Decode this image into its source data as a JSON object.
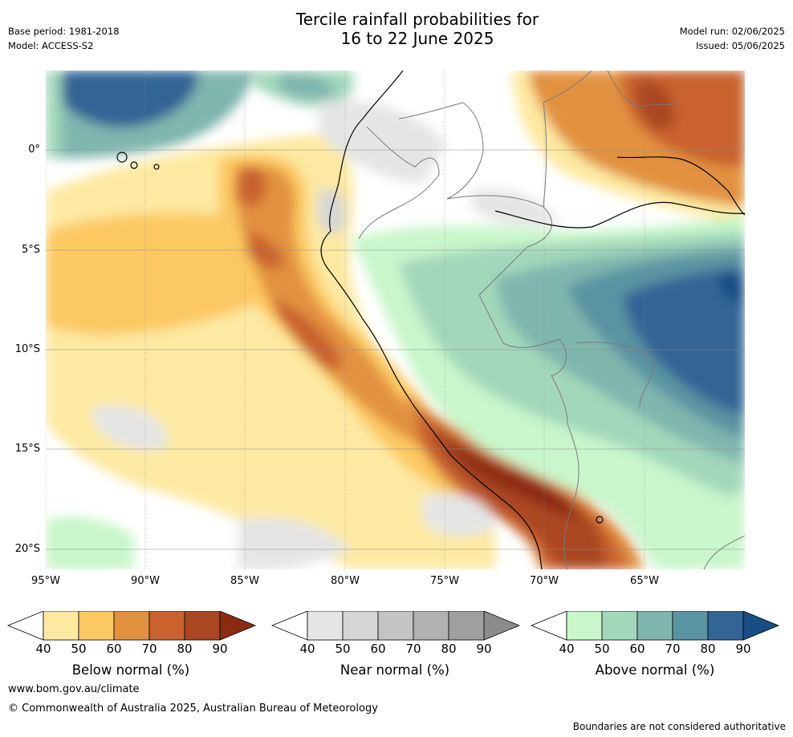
{
  "header": {
    "title_line1": "Tercile rainfall probabilities for",
    "title_line2": "16 to 22 June 2025",
    "base_period": "Base period: 1981-2018",
    "model": "Model: ACCESS-S2",
    "model_run": "Model run: 02/06/2025",
    "issued": "Issued: 05/06/2025"
  },
  "map": {
    "lat_labels": [
      "0°",
      "5°S",
      "10°S",
      "15°S",
      "20°S"
    ],
    "lon_labels": [
      "95°W",
      "90°W",
      "85°W",
      "80°W",
      "75°W",
      "70°W",
      "65°W"
    ]
  },
  "colorbars": [
    {
      "title": "Below normal (%)",
      "ticks": [
        "40",
        "50",
        "60",
        "70",
        "80",
        "90"
      ],
      "colors": [
        "#fde9a2",
        "#fcc862",
        "#e2913f",
        "#c9622e",
        "#aa4622",
        "#8c2b14"
      ]
    },
    {
      "title": "Near normal (%)",
      "ticks": [
        "40",
        "50",
        "60",
        "70",
        "80",
        "90"
      ],
      "colors": [
        "#e5e5e5",
        "#d5d5d5",
        "#c4c4c4",
        "#b2b2b2",
        "#9f9f9f",
        "#8b8b8b"
      ]
    },
    {
      "title": "Above normal (%)",
      "ticks": [
        "40",
        "50",
        "60",
        "70",
        "80",
        "90"
      ],
      "colors": [
        "#c9f6cb",
        "#a3d7bb",
        "#7fb6ae",
        "#5a93a2",
        "#336596",
        "#194d84"
      ]
    }
  ],
  "footer": {
    "url": "www.bom.gov.au/climate",
    "copyright": "© Commonwealth of Australia 2025, Australian Bureau of Meteorology",
    "disclaimer": "Boundaries are not considered authoritative"
  }
}
